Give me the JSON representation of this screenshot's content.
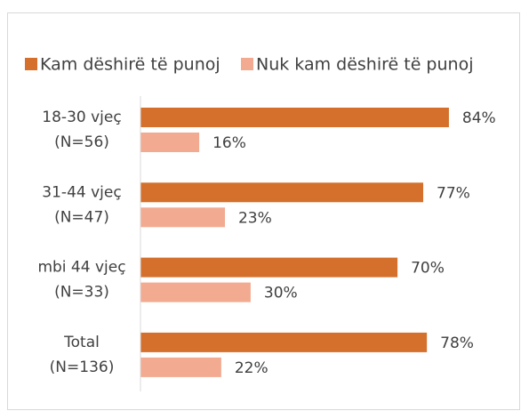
{
  "chart_data": {
    "type": "hbar",
    "categories": [
      [
        "18-30 vjeç",
        "(N=56)"
      ],
      [
        "31-44 vjeç",
        "(N=47)"
      ],
      [
        "mbi 44 vjeç",
        "(N=33)"
      ],
      [
        "Total",
        "(N=136)"
      ]
    ],
    "series": [
      {
        "name": "Kam dëshirë të punoj",
        "color": "#d4702c",
        "values": [
          84,
          77,
          70,
          78
        ],
        "value_labels": [
          "84%",
          "77%",
          "70%",
          "78%"
        ]
      },
      {
        "name": "Nuk kam dëshirë të punoj",
        "color": "#f2aa90",
        "values": [
          16,
          23,
          30,
          22
        ],
        "value_labels": [
          "16%",
          "23%",
          "30%",
          "22%"
        ]
      }
    ],
    "xlim": [
      0,
      100
    ],
    "legend": "top"
  }
}
